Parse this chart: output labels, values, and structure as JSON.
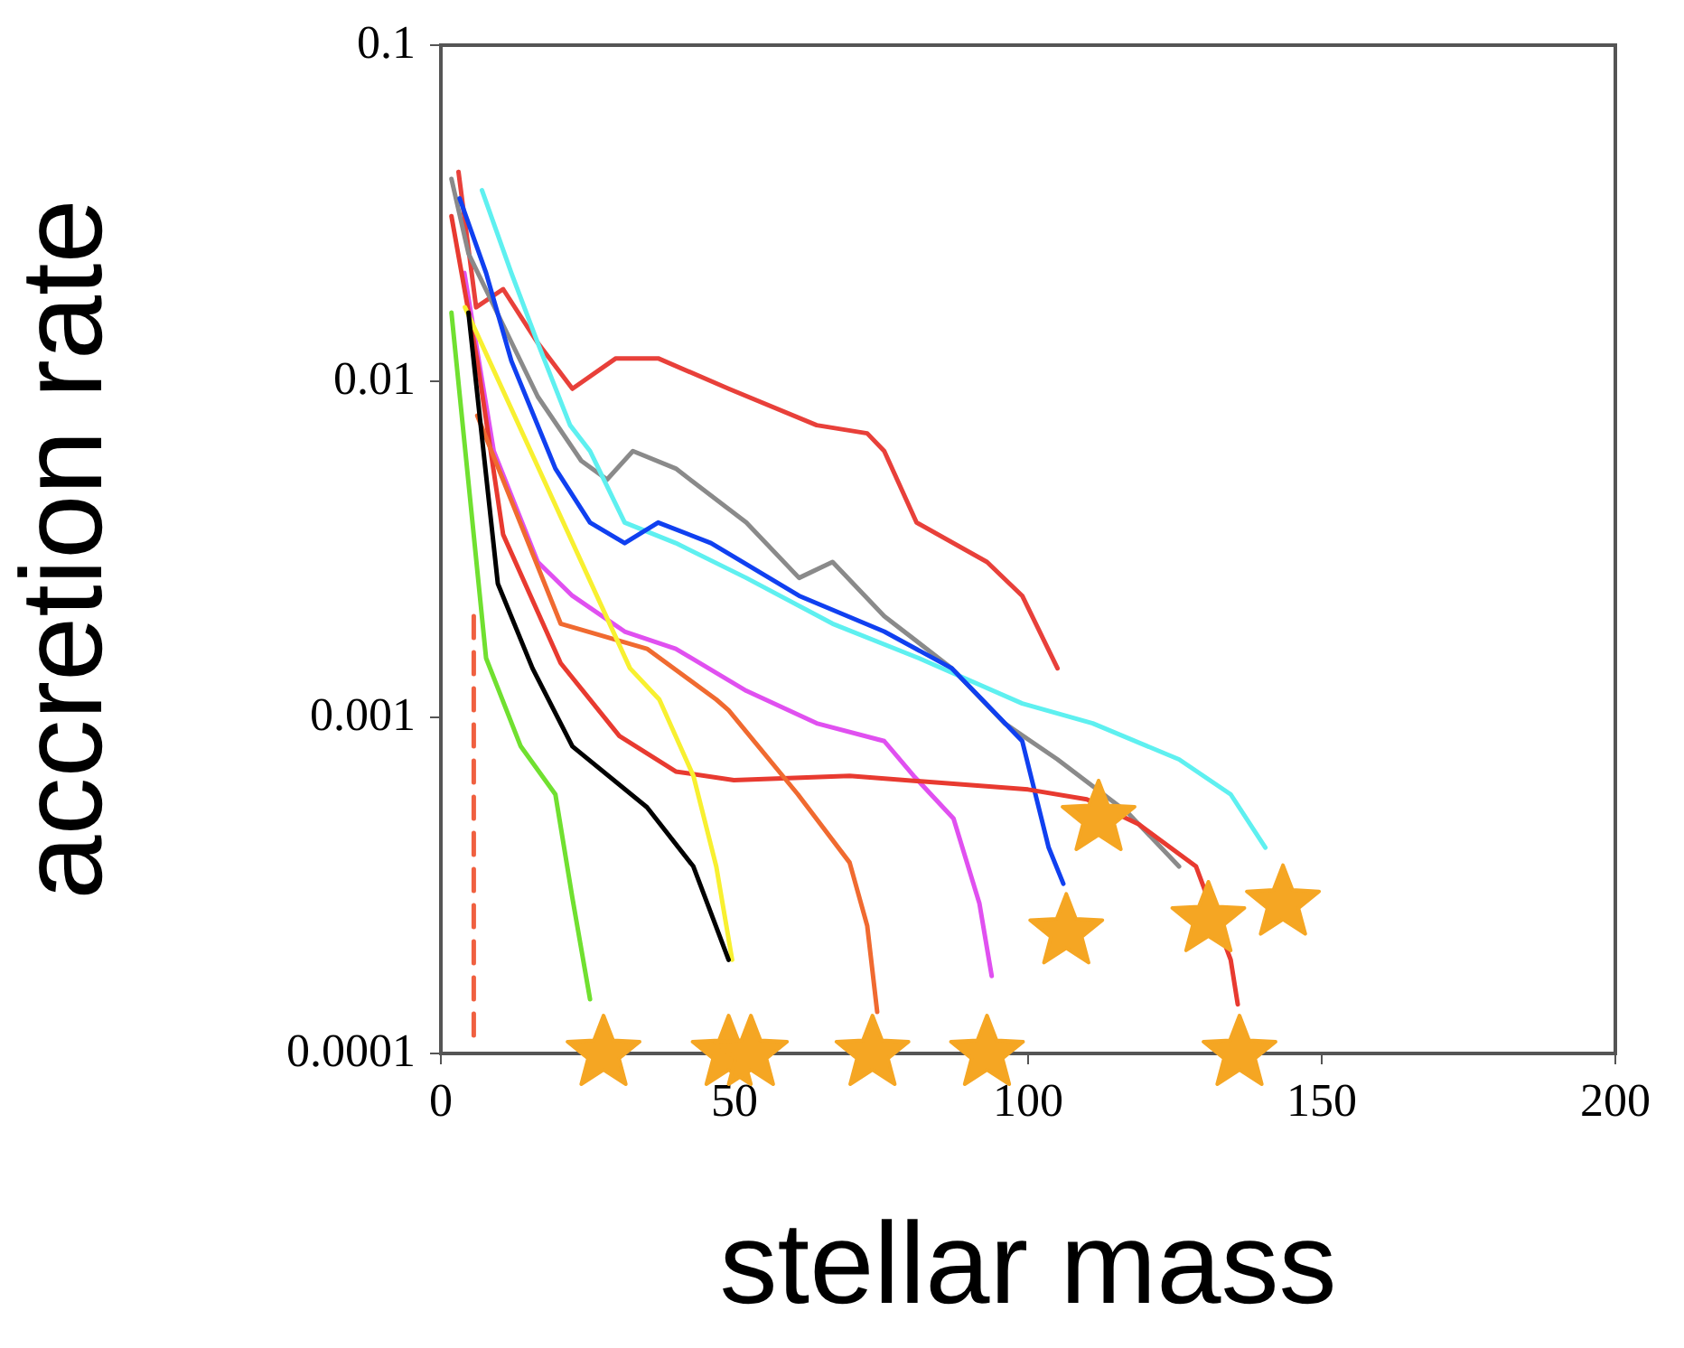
{
  "chart_data": {
    "type": "line",
    "xlabel": "stellar mass",
    "ylabel": "accretion rate",
    "xlim": [
      0,
      200
    ],
    "xticks": [
      0,
      50,
      100,
      150,
      200
    ],
    "ylim": [
      0.0001,
      0.1
    ],
    "yticks": [
      0.0001,
      0.001,
      0.01,
      0.1
    ],
    "log": "y",
    "grid": false,
    "legend": false,
    "marker": "none",
    "line_style": "solid",
    "series": [
      {
        "color": "#e8403a",
        "x": [
          3,
          6,
          10.6,
          16.5,
          22.4,
          29.8,
          37,
          49,
          64,
          72.6,
          75.5,
          81,
          93,
          99,
          105
        ],
        "values": [
          0.042,
          0.0166,
          0.0188,
          0.013,
          0.0095,
          0.0117,
          0.0117,
          0.0095,
          0.0074,
          0.007,
          0.0062,
          0.0038,
          0.0029,
          0.0023,
          0.0014
        ]
      },
      {
        "color": "#8a8a8a",
        "x": [
          1.8,
          4.7,
          10.6,
          16.5,
          23.9,
          28.3,
          32.7,
          40,
          52,
          61,
          66.7,
          75.5,
          87,
          96,
          105,
          117,
          125.7
        ],
        "values": [
          0.04,
          0.024,
          0.0147,
          0.009,
          0.0058,
          0.0051,
          0.0062,
          0.0055,
          0.0038,
          0.0026,
          0.0029,
          0.002,
          0.0014,
          0.00096,
          0.00075,
          0.00052,
          0.00036
        ]
      },
      {
        "color": "#5ef0f0",
        "x": [
          7,
          12,
          16.5,
          22,
          25.4,
          31.3,
          40,
          52,
          66.7,
          81.4,
          99,
          111,
          125.7,
          134.5,
          140.4
        ],
        "values": [
          0.037,
          0.021,
          0.013,
          0.0074,
          0.0062,
          0.0038,
          0.0033,
          0.0026,
          0.0019,
          0.0015,
          0.0011,
          0.00096,
          0.00075,
          0.00059,
          0.00041
        ]
      },
      {
        "color": "#1040f0",
        "x": [
          3.2,
          7.7,
          12,
          19.5,
          25.4,
          31.3,
          37,
          46,
          61,
          75.5,
          87,
          99,
          103.5,
          106
        ],
        "values": [
          0.035,
          0.021,
          0.0115,
          0.0055,
          0.0038,
          0.0033,
          0.0038,
          0.0033,
          0.0023,
          0.0018,
          0.0014,
          0.00085,
          0.00041,
          0.00032
        ]
      },
      {
        "color": "#e050f0",
        "x": [
          4,
          9,
          16.5,
          22.4,
          31.3,
          40,
          52,
          64,
          75.5,
          80.5,
          87.3,
          91.7,
          93.8
        ],
        "values": [
          0.021,
          0.0062,
          0.0029,
          0.0023,
          0.0018,
          0.0016,
          0.0012,
          0.00096,
          0.00085,
          0.00067,
          0.0005,
          0.00028,
          0.00017
        ]
      },
      {
        "color": "#e83a30",
        "x": [
          1.8,
          6.2,
          10.6,
          20.4,
          30.4,
          40,
          49.9,
          69.6,
          100,
          110,
          118.9,
          128.6,
          134.5,
          135.7
        ],
        "values": [
          0.031,
          0.0115,
          0.0035,
          0.00145,
          0.00088,
          0.00069,
          0.00065,
          0.00067,
          0.00061,
          0.00057,
          0.00048,
          0.00036,
          0.00019,
          0.00014
        ]
      },
      {
        "color": "#f06a30",
        "x": [
          6.2,
          20.4,
          35.1,
          46.9,
          49,
          60.8,
          69.6,
          72.6,
          74.3
        ],
        "values": [
          0.0079,
          0.0019,
          0.0016,
          0.00113,
          0.00105,
          0.00059,
          0.00037,
          0.00024,
          0.000133
        ]
      },
      {
        "color": "#f8f030",
        "x": [
          4.1,
          32.2,
          37.2,
          43,
          46.9,
          49.6
        ],
        "values": [
          0.0166,
          0.0014,
          0.00113,
          0.00067,
          0.00036,
          0.00019
        ]
      },
      {
        "color": "#000000",
        "x": [
          4.7,
          9.7,
          15.6,
          22.4,
          35.1,
          43,
          49
        ],
        "values": [
          0.016,
          0.0025,
          0.0014,
          0.00082,
          0.00054,
          0.00036,
          0.00019
        ]
      },
      {
        "color": "#70e030",
        "x": [
          1.8,
          7.7,
          13.6,
          19.5,
          22.4,
          25.4
        ],
        "values": [
          0.016,
          0.0015,
          0.00082,
          0.00059,
          0.00029,
          0.000145
        ]
      },
      {
        "color": "#f06040",
        "line_style": "dashed",
        "x": [
          5.6,
          5.6
        ],
        "values": [
          0.002,
          0.000111
        ]
      },
      {
        "type": "scatter",
        "marker": "star",
        "color": "#f5a623",
        "x": [
          27.7,
          49,
          52.8,
          73.5,
          93,
          112,
          106.5,
          130.7,
          143.4,
          136
        ],
        "values": [
          0.0001,
          0.0001,
          0.0001,
          0.0001,
          0.0001,
          0.0005,
          0.00023,
          0.00025,
          0.00028,
          0.0001
        ]
      }
    ]
  }
}
